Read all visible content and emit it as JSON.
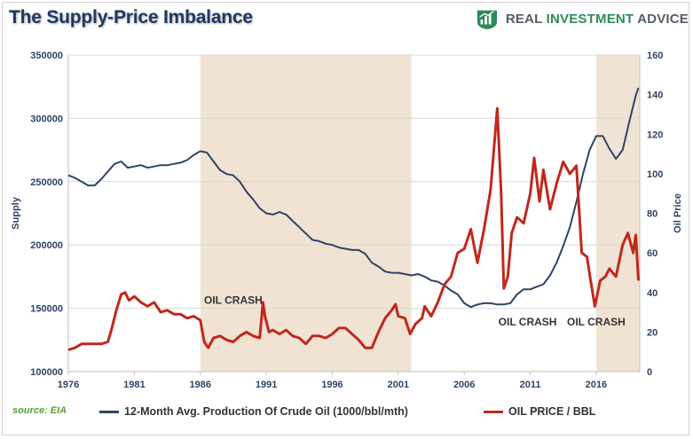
{
  "header": {
    "title": "The Supply-Price Imbalance",
    "logo": {
      "icon": "bar-chart-shield-icon",
      "word1": "REAL",
      "word2": "INVESTMENT",
      "word3": "ADVICE",
      "color_gray": "#555d66",
      "color_green": "#2e8b57"
    }
  },
  "footer": {
    "source": "source: EIA"
  },
  "chart_data": {
    "type": "line",
    "title": "The Supply-Price Imbalance",
    "xlabel": "",
    "ylabel_left": "Supply",
    "ylabel_right": "Oil Price",
    "x_range": [
      1976,
      2019.3
    ],
    "x_ticks": [
      "1976",
      "1981",
      "1986",
      "1991",
      "1996",
      "2001",
      "2006",
      "2011",
      "2016"
    ],
    "ylim_left": [
      100000,
      350000
    ],
    "y_ticks_left": [
      "100000",
      "150000",
      "200000",
      "250000",
      "300000",
      "350000"
    ],
    "ylim_right": [
      0,
      160
    ],
    "y_ticks_right": [
      "0",
      "20",
      "40",
      "60",
      "80",
      "100",
      "120",
      "140",
      "160"
    ],
    "grid": "horizontal",
    "legend_position": "bottom",
    "shaded_periods": [
      [
        1986.0,
        2002.0
      ],
      [
        2016.0,
        2019.3
      ]
    ],
    "shade_color": "#f1e3d3",
    "annotations": [
      {
        "text": "OIL CRASH",
        "x": 1988.5,
        "y_right": 36
      },
      {
        "text": "OIL CRASH",
        "x": 2010.8,
        "y_right": 25
      },
      {
        "text": "OIL CRASH",
        "x": 2016.0,
        "y_right": 25
      }
    ],
    "series": [
      {
        "name": "12-Month Avg. Production Of Crude Oil (1000/bbl/mth)",
        "axis": "left",
        "color": "#2e4366",
        "points": [
          [
            1976.0,
            255000
          ],
          [
            1976.5,
            253000
          ],
          [
            1977.0,
            250000
          ],
          [
            1977.5,
            247000
          ],
          [
            1978.0,
            247000
          ],
          [
            1978.5,
            252000
          ],
          [
            1979.0,
            258000
          ],
          [
            1979.5,
            264000
          ],
          [
            1980.0,
            266000
          ],
          [
            1980.5,
            261000
          ],
          [
            1981.0,
            262000
          ],
          [
            1981.5,
            263000
          ],
          [
            1982.0,
            261000
          ],
          [
            1982.5,
            262000
          ],
          [
            1983.0,
            263000
          ],
          [
            1983.5,
            263000
          ],
          [
            1984.0,
            264000
          ],
          [
            1984.5,
            265000
          ],
          [
            1985.0,
            267000
          ],
          [
            1985.5,
            271000
          ],
          [
            1986.0,
            274000
          ],
          [
            1986.5,
            273000
          ],
          [
            1987.0,
            266000
          ],
          [
            1987.5,
            259000
          ],
          [
            1988.0,
            256000
          ],
          [
            1988.5,
            255000
          ],
          [
            1989.0,
            250000
          ],
          [
            1989.5,
            242000
          ],
          [
            1990.0,
            236000
          ],
          [
            1990.5,
            229000
          ],
          [
            1991.0,
            225000
          ],
          [
            1991.5,
            224000
          ],
          [
            1992.0,
            226000
          ],
          [
            1992.5,
            224000
          ],
          [
            1993.0,
            219000
          ],
          [
            1993.5,
            214000
          ],
          [
            1994.0,
            209000
          ],
          [
            1994.5,
            204000
          ],
          [
            1995.0,
            203000
          ],
          [
            1995.5,
            201000
          ],
          [
            1996.0,
            200000
          ],
          [
            1996.5,
            198000
          ],
          [
            1997.0,
            197000
          ],
          [
            1997.5,
            196000
          ],
          [
            1998.0,
            196000
          ],
          [
            1998.5,
            193000
          ],
          [
            1999.0,
            186000
          ],
          [
            1999.5,
            183000
          ],
          [
            2000.0,
            179000
          ],
          [
            2000.5,
            178000
          ],
          [
            2001.0,
            178000
          ],
          [
            2001.5,
            177000
          ],
          [
            2002.0,
            176000
          ],
          [
            2002.5,
            177000
          ],
          [
            2003.0,
            175000
          ],
          [
            2003.5,
            172000
          ],
          [
            2004.0,
            171000
          ],
          [
            2004.5,
            168000
          ],
          [
            2005.0,
            164000
          ],
          [
            2005.5,
            161000
          ],
          [
            2006.0,
            154000
          ],
          [
            2006.5,
            151000
          ],
          [
            2007.0,
            153000
          ],
          [
            2007.5,
            154000
          ],
          [
            2008.0,
            154000
          ],
          [
            2008.5,
            153000
          ],
          [
            2009.0,
            153000
          ],
          [
            2009.5,
            154000
          ],
          [
            2010.0,
            161000
          ],
          [
            2010.5,
            165000
          ],
          [
            2011.0,
            165000
          ],
          [
            2011.5,
            167000
          ],
          [
            2012.0,
            169000
          ],
          [
            2012.5,
            176000
          ],
          [
            2013.0,
            186000
          ],
          [
            2013.5,
            199000
          ],
          [
            2014.0,
            214000
          ],
          [
            2014.5,
            234000
          ],
          [
            2015.0,
            256000
          ],
          [
            2015.5,
            275000
          ],
          [
            2016.0,
            286000
          ],
          [
            2016.5,
            286000
          ],
          [
            2017.0,
            276000
          ],
          [
            2017.5,
            268000
          ],
          [
            2018.0,
            275000
          ],
          [
            2018.5,
            297000
          ],
          [
            2019.0,
            318000
          ],
          [
            2019.2,
            324000
          ]
        ]
      },
      {
        "name": "OIL PRICE / BBL",
        "axis": "right",
        "color": "#c0281c",
        "points": [
          [
            1976.0,
            11
          ],
          [
            1976.5,
            12
          ],
          [
            1977.0,
            14
          ],
          [
            1977.5,
            14
          ],
          [
            1978.0,
            14
          ],
          [
            1978.5,
            14
          ],
          [
            1979.0,
            15
          ],
          [
            1979.3,
            22
          ],
          [
            1979.6,
            30
          ],
          [
            1980.0,
            39
          ],
          [
            1980.3,
            40
          ],
          [
            1980.6,
            36
          ],
          [
            1981.0,
            38
          ],
          [
            1981.5,
            35
          ],
          [
            1982.0,
            33
          ],
          [
            1982.5,
            35
          ],
          [
            1983.0,
            30
          ],
          [
            1983.5,
            31
          ],
          [
            1984.0,
            29
          ],
          [
            1984.5,
            29
          ],
          [
            1985.0,
            27
          ],
          [
            1985.5,
            28
          ],
          [
            1986.0,
            26
          ],
          [
            1986.3,
            15
          ],
          [
            1986.6,
            12
          ],
          [
            1987.0,
            17
          ],
          [
            1987.5,
            18
          ],
          [
            1988.0,
            16
          ],
          [
            1988.5,
            15
          ],
          [
            1989.0,
            18
          ],
          [
            1989.5,
            20
          ],
          [
            1990.0,
            18
          ],
          [
            1990.5,
            17
          ],
          [
            1990.75,
            35
          ],
          [
            1990.9,
            28
          ],
          [
            1991.2,
            20
          ],
          [
            1991.5,
            21
          ],
          [
            1992.0,
            19
          ],
          [
            1992.5,
            21
          ],
          [
            1993.0,
            18
          ],
          [
            1993.5,
            17
          ],
          [
            1994.0,
            14
          ],
          [
            1994.5,
            18
          ],
          [
            1995.0,
            18
          ],
          [
            1995.5,
            17
          ],
          [
            1996.0,
            19
          ],
          [
            1996.5,
            22
          ],
          [
            1997.0,
            22
          ],
          [
            1997.5,
            19
          ],
          [
            1998.0,
            16
          ],
          [
            1998.5,
            12
          ],
          [
            1999.0,
            12
          ],
          [
            1999.5,
            20
          ],
          [
            2000.0,
            27
          ],
          [
            2000.5,
            31
          ],
          [
            2000.8,
            34
          ],
          [
            2001.0,
            28
          ],
          [
            2001.5,
            27
          ],
          [
            2001.9,
            19
          ],
          [
            2002.3,
            24
          ],
          [
            2002.8,
            27
          ],
          [
            2003.0,
            33
          ],
          [
            2003.5,
            28
          ],
          [
            2004.0,
            35
          ],
          [
            2004.5,
            44
          ],
          [
            2005.0,
            48
          ],
          [
            2005.5,
            60
          ],
          [
            2006.0,
            62
          ],
          [
            2006.5,
            72
          ],
          [
            2007.0,
            55
          ],
          [
            2007.5,
            72
          ],
          [
            2008.0,
            92
          ],
          [
            2008.5,
            133
          ],
          [
            2008.8,
            90
          ],
          [
            2009.0,
            42
          ],
          [
            2009.3,
            48
          ],
          [
            2009.6,
            70
          ],
          [
            2010.0,
            78
          ],
          [
            2010.5,
            75
          ],
          [
            2011.0,
            90
          ],
          [
            2011.3,
            108
          ],
          [
            2011.7,
            86
          ],
          [
            2012.0,
            102
          ],
          [
            2012.5,
            82
          ],
          [
            2013.0,
            95
          ],
          [
            2013.5,
            106
          ],
          [
            2014.0,
            100
          ],
          [
            2014.5,
            104
          ],
          [
            2014.9,
            60
          ],
          [
            2015.3,
            58
          ],
          [
            2015.6,
            45
          ],
          [
            2015.9,
            33
          ],
          [
            2016.3,
            46
          ],
          [
            2016.7,
            48
          ],
          [
            2017.0,
            52
          ],
          [
            2017.5,
            48
          ],
          [
            2018.0,
            64
          ],
          [
            2018.4,
            70
          ],
          [
            2018.8,
            60
          ],
          [
            2019.0,
            69
          ],
          [
            2019.2,
            46
          ]
        ]
      }
    ]
  }
}
